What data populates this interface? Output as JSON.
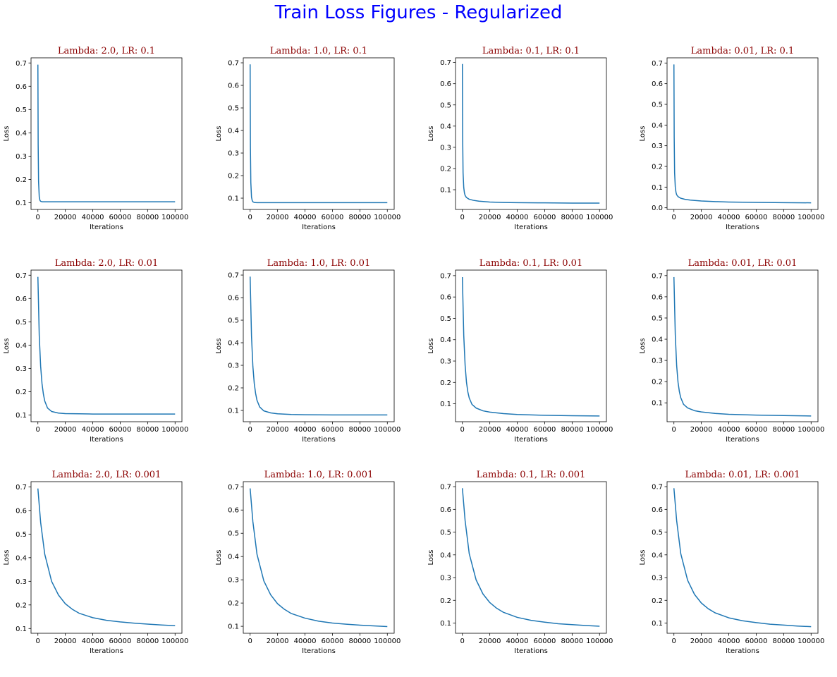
{
  "figure": {
    "suptitle": "Train Loss Figures - Regularized",
    "suptitle_color": "#0000ff",
    "subplot_title_color": "#8b0000",
    "line_color": "#1f77b4"
  },
  "chart_data": [
    {
      "type": "line",
      "title": "Lambda: 2.0, LR: 0.1",
      "xlabel": "Iterations",
      "ylabel": "Loss",
      "xlim": [
        -5000,
        105000
      ],
      "ylim": [
        0.071,
        0.722
      ],
      "xticks": [
        0,
        20000,
        40000,
        60000,
        80000,
        100000
      ],
      "xtick_labels": [
        "0",
        "20000",
        "40000",
        "60000",
        "80000",
        "100000"
      ],
      "yticks": [
        0.1,
        0.2,
        0.3,
        0.4,
        0.5,
        0.6,
        0.7
      ],
      "ytick_labels": [
        "0.1",
        "0.2",
        "0.3",
        "0.4",
        "0.5",
        "0.6",
        "0.7"
      ],
      "grid": false,
      "series": [
        {
          "x": [
            0,
            200,
            500,
            1000,
            1500,
            2000,
            3000,
            5000,
            10000,
            20000,
            40000,
            60000,
            80000,
            100000
          ],
          "y": [
            0.693,
            0.35,
            0.19,
            0.125,
            0.11,
            0.106,
            0.104,
            0.104,
            0.104,
            0.104,
            0.104,
            0.104,
            0.104,
            0.104
          ]
        }
      ]
    },
    {
      "type": "line",
      "title": "Lambda: 1.0, LR: 0.1",
      "xlabel": "Iterations",
      "ylabel": "Loss",
      "xlim": [
        -5000,
        105000
      ],
      "ylim": [
        0.05,
        0.722
      ],
      "xticks": [
        0,
        20000,
        40000,
        60000,
        80000,
        100000
      ],
      "xtick_labels": [
        "0",
        "20000",
        "40000",
        "60000",
        "80000",
        "100000"
      ],
      "yticks": [
        0.1,
        0.2,
        0.3,
        0.4,
        0.5,
        0.6,
        0.7
      ],
      "ytick_labels": [
        "0.1",
        "0.2",
        "0.3",
        "0.4",
        "0.5",
        "0.6",
        "0.7"
      ],
      "grid": false,
      "series": [
        {
          "x": [
            0,
            200,
            500,
            1000,
            1500,
            2000,
            3000,
            5000,
            10000,
            20000,
            40000,
            60000,
            80000,
            100000
          ],
          "y": [
            0.693,
            0.33,
            0.17,
            0.105,
            0.09,
            0.084,
            0.081,
            0.08,
            0.08,
            0.08,
            0.08,
            0.08,
            0.08,
            0.08
          ]
        }
      ]
    },
    {
      "type": "line",
      "title": "Lambda: 0.1, LR: 0.1",
      "xlabel": "Iterations",
      "ylabel": "Loss",
      "xlim": [
        -5000,
        105000
      ],
      "ylim": [
        0.007,
        0.722
      ],
      "xticks": [
        0,
        20000,
        40000,
        60000,
        80000,
        100000
      ],
      "xtick_labels": [
        "0",
        "20000",
        "40000",
        "60000",
        "80000",
        "100000"
      ],
      "yticks": [
        0.1,
        0.2,
        0.3,
        0.4,
        0.5,
        0.6,
        0.7
      ],
      "ytick_labels": [
        "0.1",
        "0.2",
        "0.3",
        "0.4",
        "0.5",
        "0.6",
        "0.7"
      ],
      "grid": false,
      "series": [
        {
          "x": [
            0,
            200,
            500,
            1000,
            1500,
            2000,
            3000,
            5000,
            8000,
            12000,
            20000,
            30000,
            40000,
            60000,
            80000,
            100000
          ],
          "y": [
            0.693,
            0.35,
            0.18,
            0.11,
            0.085,
            0.073,
            0.063,
            0.055,
            0.05,
            0.046,
            0.042,
            0.04,
            0.039,
            0.038,
            0.037,
            0.037
          ]
        }
      ]
    },
    {
      "type": "line",
      "title": "Lambda: 0.01, LR: 0.1",
      "xlabel": "Iterations",
      "ylabel": "Loss",
      "xlim": [
        -5000,
        105000
      ],
      "ylim": [
        -0.008,
        0.725
      ],
      "xticks": [
        0,
        20000,
        40000,
        60000,
        80000,
        100000
      ],
      "xtick_labels": [
        "0",
        "20000",
        "40000",
        "60000",
        "80000",
        "100000"
      ],
      "yticks": [
        0.0,
        0.1,
        0.2,
        0.3,
        0.4,
        0.5,
        0.6,
        0.7
      ],
      "ytick_labels": [
        "0.0",
        "0.1",
        "0.2",
        "0.3",
        "0.4",
        "0.5",
        "0.6",
        "0.7"
      ],
      "grid": false,
      "series": [
        {
          "x": [
            0,
            200,
            500,
            1000,
            1500,
            2000,
            3000,
            5000,
            8000,
            12000,
            20000,
            30000,
            40000,
            60000,
            80000,
            100000
          ],
          "y": [
            0.693,
            0.34,
            0.17,
            0.1,
            0.075,
            0.063,
            0.054,
            0.046,
            0.041,
            0.037,
            0.033,
            0.03,
            0.028,
            0.026,
            0.025,
            0.024
          ]
        }
      ]
    },
    {
      "type": "line",
      "title": "Lambda: 2.0, LR: 0.01",
      "xlabel": "Iterations",
      "ylabel": "Loss",
      "xlim": [
        -5000,
        105000
      ],
      "ylim": [
        0.071,
        0.722
      ],
      "xticks": [
        0,
        20000,
        40000,
        60000,
        80000,
        100000
      ],
      "xtick_labels": [
        "0",
        "20000",
        "40000",
        "60000",
        "80000",
        "100000"
      ],
      "yticks": [
        0.1,
        0.2,
        0.3,
        0.4,
        0.5,
        0.6,
        0.7
      ],
      "ytick_labels": [
        "0.1",
        "0.2",
        "0.3",
        "0.4",
        "0.5",
        "0.6",
        "0.7"
      ],
      "grid": false,
      "series": [
        {
          "x": [
            0,
            1000,
            2000,
            3000,
            4000,
            5000,
            7000,
            10000,
            15000,
            20000,
            30000,
            40000,
            60000,
            80000,
            100000
          ],
          "y": [
            0.693,
            0.44,
            0.31,
            0.235,
            0.19,
            0.16,
            0.13,
            0.115,
            0.108,
            0.106,
            0.105,
            0.104,
            0.104,
            0.104,
            0.104
          ]
        }
      ]
    },
    {
      "type": "line",
      "title": "Lambda: 1.0, LR: 0.01",
      "xlabel": "Iterations",
      "ylabel": "Loss",
      "xlim": [
        -5000,
        105000
      ],
      "ylim": [
        0.05,
        0.722
      ],
      "xticks": [
        0,
        20000,
        40000,
        60000,
        80000,
        100000
      ],
      "xtick_labels": [
        "0",
        "20000",
        "40000",
        "60000",
        "80000",
        "100000"
      ],
      "yticks": [
        0.1,
        0.2,
        0.3,
        0.4,
        0.5,
        0.6,
        0.7
      ],
      "ytick_labels": [
        "0.1",
        "0.2",
        "0.3",
        "0.4",
        "0.5",
        "0.6",
        "0.7"
      ],
      "grid": false,
      "series": [
        {
          "x": [
            0,
            1000,
            2000,
            3000,
            4000,
            5000,
            7000,
            10000,
            15000,
            20000,
            30000,
            40000,
            60000,
            80000,
            100000
          ],
          "y": [
            0.693,
            0.43,
            0.295,
            0.22,
            0.175,
            0.145,
            0.115,
            0.098,
            0.089,
            0.085,
            0.082,
            0.081,
            0.08,
            0.08,
            0.08
          ]
        }
      ]
    },
    {
      "type": "line",
      "title": "Lambda: 0.1, LR: 0.01",
      "xlabel": "Iterations",
      "ylabel": "Loss",
      "xlim": [
        -5000,
        105000
      ],
      "ylim": [
        0.016,
        0.726
      ],
      "xticks": [
        0,
        20000,
        40000,
        60000,
        80000,
        100000
      ],
      "xtick_labels": [
        "0",
        "20000",
        "40000",
        "60000",
        "80000",
        "100000"
      ],
      "yticks": [
        0.1,
        0.2,
        0.3,
        0.4,
        0.5,
        0.6,
        0.7
      ],
      "ytick_labels": [
        "0.1",
        "0.2",
        "0.3",
        "0.4",
        "0.5",
        "0.6",
        "0.7"
      ],
      "grid": false,
      "series": [
        {
          "x": [
            0,
            1000,
            2000,
            3000,
            4000,
            5000,
            7000,
            10000,
            15000,
            20000,
            30000,
            40000,
            60000,
            80000,
            100000
          ],
          "y": [
            0.693,
            0.42,
            0.28,
            0.2,
            0.155,
            0.127,
            0.097,
            0.08,
            0.067,
            0.061,
            0.054,
            0.05,
            0.046,
            0.044,
            0.043
          ]
        }
      ]
    },
    {
      "type": "line",
      "title": "Lambda: 0.01, LR: 0.01",
      "xlabel": "Iterations",
      "ylabel": "Loss",
      "xlim": [
        -5000,
        105000
      ],
      "ylim": [
        0.011,
        0.726
      ],
      "xticks": [
        0,
        20000,
        40000,
        60000,
        80000,
        100000
      ],
      "xtick_labels": [
        "0",
        "20000",
        "40000",
        "60000",
        "80000",
        "100000"
      ],
      "yticks": [
        0.1,
        0.2,
        0.3,
        0.4,
        0.5,
        0.6,
        0.7
      ],
      "ytick_labels": [
        "0.1",
        "0.2",
        "0.3",
        "0.4",
        "0.5",
        "0.6",
        "0.7"
      ],
      "grid": false,
      "series": [
        {
          "x": [
            0,
            1000,
            2000,
            3000,
            4000,
            5000,
            7000,
            10000,
            15000,
            20000,
            30000,
            40000,
            60000,
            80000,
            100000
          ],
          "y": [
            0.693,
            0.42,
            0.275,
            0.197,
            0.152,
            0.124,
            0.093,
            0.076,
            0.063,
            0.057,
            0.05,
            0.046,
            0.042,
            0.04,
            0.038
          ]
        }
      ]
    },
    {
      "type": "line",
      "title": "Lambda: 2.0, LR: 0.001",
      "xlabel": "Iterations",
      "ylabel": "Loss",
      "xlim": [
        -5000,
        105000
      ],
      "ylim": [
        0.08,
        0.722
      ],
      "xticks": [
        0,
        20000,
        40000,
        60000,
        80000,
        100000
      ],
      "xtick_labels": [
        "0",
        "20000",
        "40000",
        "60000",
        "80000",
        "100000"
      ],
      "yticks": [
        0.1,
        0.2,
        0.3,
        0.4,
        0.5,
        0.6,
        0.7
      ],
      "ytick_labels": [
        "0.1",
        "0.2",
        "0.3",
        "0.4",
        "0.5",
        "0.6",
        "0.7"
      ],
      "grid": false,
      "series": [
        {
          "x": [
            0,
            2000,
            5000,
            10000,
            15000,
            20000,
            25000,
            30000,
            40000,
            50000,
            60000,
            70000,
            80000,
            90000,
            100000
          ],
          "y": [
            0.693,
            0.55,
            0.415,
            0.3,
            0.242,
            0.205,
            0.182,
            0.165,
            0.146,
            0.135,
            0.128,
            0.123,
            0.119,
            0.115,
            0.112
          ]
        }
      ]
    },
    {
      "type": "line",
      "title": "Lambda: 1.0, LR: 0.001",
      "xlabel": "Iterations",
      "ylabel": "Loss",
      "xlim": [
        -5000,
        105000
      ],
      "ylim": [
        0.07,
        0.722
      ],
      "xticks": [
        0,
        20000,
        40000,
        60000,
        80000,
        100000
      ],
      "xtick_labels": [
        "0",
        "20000",
        "40000",
        "60000",
        "80000",
        "100000"
      ],
      "yticks": [
        0.1,
        0.2,
        0.3,
        0.4,
        0.5,
        0.6,
        0.7
      ],
      "ytick_labels": [
        "0.1",
        "0.2",
        "0.3",
        "0.4",
        "0.5",
        "0.6",
        "0.7"
      ],
      "grid": false,
      "series": [
        {
          "x": [
            0,
            2000,
            5000,
            10000,
            15000,
            20000,
            25000,
            30000,
            40000,
            50000,
            60000,
            70000,
            80000,
            90000,
            100000
          ],
          "y": [
            0.693,
            0.55,
            0.41,
            0.295,
            0.235,
            0.197,
            0.173,
            0.155,
            0.135,
            0.122,
            0.114,
            0.109,
            0.105,
            0.102,
            0.099
          ]
        }
      ]
    },
    {
      "type": "line",
      "title": "Lambda: 0.1, LR: 0.001",
      "xlabel": "Iterations",
      "ylabel": "Loss",
      "xlim": [
        -5000,
        105000
      ],
      "ylim": [
        0.055,
        0.722
      ],
      "xticks": [
        0,
        20000,
        40000,
        60000,
        80000,
        100000
      ],
      "xtick_labels": [
        "0",
        "20000",
        "40000",
        "60000",
        "80000",
        "100000"
      ],
      "yticks": [
        0.1,
        0.2,
        0.3,
        0.4,
        0.5,
        0.6,
        0.7
      ],
      "ytick_labels": [
        "0.1",
        "0.2",
        "0.3",
        "0.4",
        "0.5",
        "0.6",
        "0.7"
      ],
      "grid": false,
      "series": [
        {
          "x": [
            0,
            2000,
            5000,
            10000,
            15000,
            20000,
            25000,
            30000,
            40000,
            50000,
            60000,
            70000,
            80000,
            90000,
            100000
          ],
          "y": [
            0.693,
            0.55,
            0.405,
            0.29,
            0.228,
            0.19,
            0.165,
            0.147,
            0.125,
            0.112,
            0.104,
            0.097,
            0.093,
            0.089,
            0.086
          ]
        }
      ]
    },
    {
      "type": "line",
      "title": "Lambda: 0.01, LR: 0.001",
      "xlabel": "Iterations",
      "ylabel": "Loss",
      "xlim": [
        -5000,
        105000
      ],
      "ylim": [
        0.055,
        0.722
      ],
      "xticks": [
        0,
        20000,
        40000,
        60000,
        80000,
        100000
      ],
      "xtick_labels": [
        "0",
        "20000",
        "40000",
        "60000",
        "80000",
        "100000"
      ],
      "yticks": [
        0.1,
        0.2,
        0.3,
        0.4,
        0.5,
        0.6,
        0.7
      ],
      "ytick_labels": [
        "0.1",
        "0.2",
        "0.3",
        "0.4",
        "0.5",
        "0.6",
        "0.7"
      ],
      "grid": false,
      "series": [
        {
          "x": [
            0,
            2000,
            5000,
            10000,
            15000,
            20000,
            25000,
            30000,
            40000,
            50000,
            60000,
            70000,
            80000,
            90000,
            100000
          ],
          "y": [
            0.693,
            0.55,
            0.405,
            0.288,
            0.226,
            0.188,
            0.163,
            0.145,
            0.123,
            0.11,
            0.102,
            0.095,
            0.091,
            0.087,
            0.084
          ]
        }
      ]
    }
  ]
}
